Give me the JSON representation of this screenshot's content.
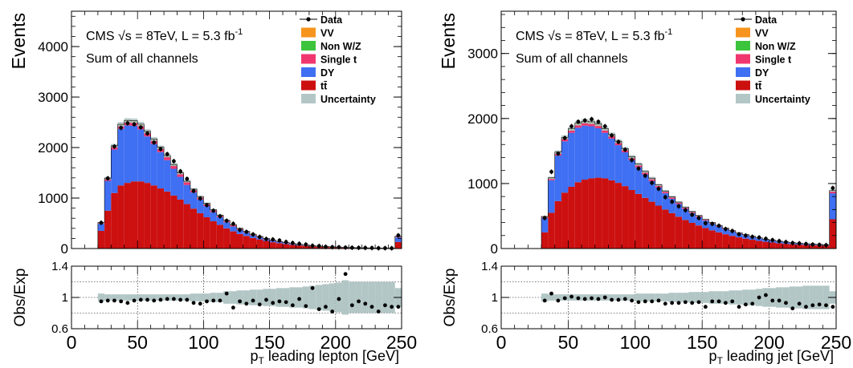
{
  "colors": {
    "vv": "#f7941d",
    "nonwz": "#3cc43c",
    "singlet": "#f0366e",
    "dy": "#3f6ff2",
    "tt": "#cc1010",
    "uncertainty": "#b3c6c6",
    "data": "#000000"
  },
  "legend": [
    {
      "key": "data",
      "label": "Data",
      "style": "marker"
    },
    {
      "key": "vv",
      "label": "VV",
      "style": "box"
    },
    {
      "key": "nonwz",
      "label": "Non W/Z",
      "style": "box"
    },
    {
      "key": "singlet",
      "label": "Single t",
      "style": "box"
    },
    {
      "key": "dy",
      "label": "DY",
      "style": "box"
    },
    {
      "key": "tt",
      "label": "tt̄",
      "style": "box"
    },
    {
      "key": "uncertainty",
      "label": "Uncertainty",
      "style": "box"
    }
  ],
  "chart_data": [
    {
      "type": "bar",
      "stacked": true,
      "annotation1": "CMS √s = 8TeV, L = 5.3 fb",
      "annotation1_sup": "-1",
      "annotation2": "Sum of all channels",
      "ylabel": "Events",
      "xlabel": "p_T leading lepton [GeV]",
      "xlabel_main": "p",
      "xlabel_sub": "T",
      "xlabel_rest": " leading lepton [GeV]",
      "xlim": [
        0,
        250
      ],
      "ylim": [
        0,
        4700
      ],
      "yticks": [
        0,
        1000,
        2000,
        3000,
        4000
      ],
      "xticks": [
        0,
        50,
        100,
        150,
        200,
        250
      ],
      "bin_width": 5,
      "bin_low_edges": [
        20,
        25,
        30,
        35,
        40,
        45,
        50,
        55,
        60,
        65,
        70,
        75,
        80,
        85,
        90,
        95,
        100,
        105,
        110,
        115,
        120,
        125,
        130,
        135,
        140,
        145,
        150,
        155,
        160,
        165,
        170,
        175,
        180,
        185,
        190,
        195,
        200,
        205,
        210,
        215,
        220,
        225,
        230,
        235,
        240,
        245
      ],
      "tt": [
        350,
        750,
        1100,
        1250,
        1300,
        1330,
        1330,
        1300,
        1250,
        1190,
        1130,
        1050,
        970,
        880,
        790,
        700,
        620,
        540,
        470,
        400,
        340,
        290,
        250,
        210,
        180,
        150,
        125,
        105,
        88,
        74,
        62,
        52,
        43,
        36,
        30,
        25,
        21,
        17,
        14,
        12,
        10,
        8,
        7,
        6,
        5,
        130
      ],
      "dy": [
        140,
        590,
        860,
        1120,
        1140,
        1100,
        1030,
        920,
        820,
        720,
        620,
        530,
        450,
        380,
        320,
        270,
        220,
        180,
        150,
        120,
        98,
        80,
        64,
        50,
        40,
        32,
        26,
        21,
        17,
        14,
        11,
        9,
        7,
        6,
        5,
        4,
        3,
        3,
        2,
        2,
        2,
        1,
        1,
        1,
        1,
        90
      ],
      "singlet": [
        15,
        35,
        50,
        60,
        65,
        68,
        70,
        70,
        68,
        65,
        62,
        58,
        54,
        50,
        45,
        41,
        37,
        33,
        29,
        26,
        23,
        20,
        17,
        15,
        13,
        11,
        9,
        8,
        7,
        6,
        5,
        4,
        4,
        3,
        3,
        2,
        2,
        2,
        1,
        1,
        1,
        1,
        1,
        1,
        1,
        15
      ],
      "nonwz": [
        5,
        10,
        14,
        16,
        17,
        18,
        18,
        17,
        17,
        16,
        15,
        14,
        13,
        12,
        11,
        10,
        9,
        8,
        7,
        6,
        5,
        5,
        4,
        4,
        3,
        3,
        3,
        2,
        2,
        2,
        2,
        1,
        1,
        1,
        1,
        1,
        1,
        1,
        1,
        0,
        0,
        0,
        0,
        0,
        0,
        3
      ],
      "vv": [
        5,
        9,
        12,
        14,
        15,
        15,
        15,
        15,
        14,
        14,
        13,
        12,
        11,
        11,
        10,
        9,
        8,
        7,
        7,
        6,
        5,
        5,
        4,
        4,
        3,
        3,
        3,
        2,
        2,
        2,
        2,
        1,
        1,
        1,
        1,
        1,
        1,
        1,
        1,
        1,
        1,
        0,
        0,
        0,
        0,
        5
      ],
      "data": [
        510,
        1390,
        2020,
        2390,
        2480,
        2460,
        2400,
        2280,
        2100,
        1970,
        1870,
        1730,
        1530,
        1380,
        1140,
        990,
        860,
        750,
        640,
        550,
        490,
        370,
        330,
        280,
        230,
        190,
        180,
        160,
        130,
        110,
        95,
        80,
        56,
        50,
        35,
        28,
        26,
        20,
        17,
        15,
        13,
        11,
        8,
        8,
        6,
        260
      ],
      "ratio": {
        "ylabel": "Obs/Exp",
        "ylim": [
          0.6,
          1.4
        ],
        "yticks": [
          0.6,
          1,
          1.4
        ],
        "ytick_labels": [
          "0.6",
          "1",
          "1.4"
        ],
        "gridlines": [
          0.8,
          1.0,
          1.2
        ],
        "values": [
          0.95,
          0.96,
          0.96,
          0.95,
          0.93,
          0.96,
          0.97,
          0.97,
          0.96,
          0.97,
          0.98,
          0.98,
          0.97,
          0.97,
          0.93,
          0.92,
          0.95,
          0.96,
          0.96,
          1.05,
          0.87,
          0.95,
          0.92,
          0.96,
          0.91,
          0.97,
          0.93,
          0.95,
          0.94,
          0.9,
          0.98,
          0.89,
          1.12,
          0.85,
          0.88,
          0.82,
          0.98,
          1.3,
          0.9,
          0.95,
          0.92,
          0.88,
          0.82,
          0.9,
          0.88,
          0.88
        ],
        "uncertainty": [
          0.05,
          0.04,
          0.04,
          0.04,
          0.04,
          0.04,
          0.04,
          0.04,
          0.04,
          0.04,
          0.04,
          0.04,
          0.04,
          0.04,
          0.05,
          0.05,
          0.05,
          0.06,
          0.06,
          0.08,
          0.08,
          0.09,
          0.09,
          0.1,
          0.1,
          0.11,
          0.11,
          0.12,
          0.12,
          0.13,
          0.13,
          0.14,
          0.15,
          0.16,
          0.17,
          0.18,
          0.19,
          0.22,
          0.2,
          0.2,
          0.2,
          0.2,
          0.2,
          0.2,
          0.2,
          0.12
        ]
      }
    },
    {
      "type": "bar",
      "stacked": true,
      "annotation1": "CMS √s = 8TeV, L = 5.3 fb",
      "annotation1_sup": "-1",
      "annotation2": "Sum of all channels",
      "ylabel": "Events",
      "xlabel": "p_T leading jet [GeV]",
      "xlabel_main": "p",
      "xlabel_sub": "T",
      "xlabel_rest": " leading jet [GeV]",
      "xlim": [
        0,
        250
      ],
      "ylim": [
        0,
        3650
      ],
      "yticks": [
        0,
        1000,
        2000,
        3000
      ],
      "xticks": [
        0,
        50,
        100,
        150,
        200,
        250
      ],
      "bin_width": 5,
      "bin_low_edges": [
        30,
        35,
        40,
        45,
        50,
        55,
        60,
        65,
        70,
        75,
        80,
        85,
        90,
        95,
        100,
        105,
        110,
        115,
        120,
        125,
        130,
        135,
        140,
        145,
        150,
        155,
        160,
        165,
        170,
        175,
        180,
        185,
        190,
        195,
        200,
        205,
        210,
        215,
        220,
        225,
        230,
        235,
        240,
        245
      ],
      "tt": [
        250,
        550,
        730,
        860,
        950,
        1020,
        1060,
        1080,
        1090,
        1080,
        1050,
        1010,
        960,
        900,
        840,
        780,
        720,
        660,
        600,
        545,
        490,
        440,
        395,
        355,
        315,
        280,
        250,
        220,
        195,
        172,
        152,
        135,
        118,
        104,
        92,
        82,
        73,
        66,
        60,
        55,
        51,
        48,
        45,
        450
      ],
      "dy": [
        220,
        500,
        700,
        790,
        830,
        840,
        830,
        800,
        760,
        700,
        640,
        580,
        520,
        460,
        410,
        360,
        320,
        280,
        250,
        220,
        195,
        170,
        150,
        130,
        115,
        100,
        88,
        76,
        66,
        58,
        50,
        43,
        37,
        32,
        28,
        24,
        21,
        18,
        16,
        14,
        12,
        10,
        9,
        400
      ],
      "singlet": [
        15,
        25,
        35,
        40,
        42,
        44,
        45,
        45,
        44,
        43,
        41,
        39,
        37,
        35,
        32,
        30,
        28,
        26,
        24,
        22,
        20,
        18,
        16,
        15,
        13,
        12,
        11,
        10,
        9,
        8,
        7,
        6,
        6,
        5,
        5,
        4,
        4,
        3,
        3,
        3,
        3,
        2,
        2,
        25
      ],
      "nonwz": [
        4,
        7,
        10,
        12,
        13,
        13,
        13,
        13,
        13,
        12,
        12,
        11,
        10,
        10,
        9,
        8,
        8,
        7,
        6,
        6,
        5,
        5,
        4,
        4,
        4,
        3,
        3,
        3,
        2,
        2,
        2,
        2,
        2,
        1,
        1,
        1,
        1,
        1,
        1,
        1,
        1,
        1,
        1,
        8
      ],
      "vv": [
        4,
        6,
        8,
        9,
        10,
        10,
        11,
        11,
        11,
        11,
        10,
        10,
        9,
        9,
        8,
        8,
        7,
        6,
        6,
        5,
        5,
        5,
        4,
        4,
        3,
        3,
        3,
        3,
        2,
        2,
        2,
        2,
        2,
        1,
        1,
        1,
        1,
        1,
        1,
        1,
        1,
        1,
        1,
        8
      ],
      "data": [
        470,
        1180,
        1460,
        1700,
        1880,
        1950,
        1970,
        1990,
        1950,
        1880,
        1740,
        1640,
        1520,
        1360,
        1230,
        1120,
        1010,
        920,
        790,
        720,
        650,
        590,
        520,
        470,
        390,
        380,
        350,
        300,
        270,
        220,
        200,
        180,
        170,
        150,
        130,
        115,
        100,
        85,
        80,
        70,
        62,
        57,
        52,
        930
      ],
      "ratio": {
        "ylabel": "Obs/Exp",
        "ylim": [
          0.6,
          1.4
        ],
        "yticks": [
          0.6,
          1,
          1.4
        ],
        "ytick_labels": [
          "0.6",
          "1",
          "1.4"
        ],
        "gridlines": [
          0.8,
          1.0,
          1.2
        ],
        "values": [
          0.96,
          1.05,
          0.96,
          0.99,
          1.01,
          0.99,
          0.98,
          0.99,
          0.98,
          1.0,
          0.97,
          0.97,
          0.98,
          0.96,
          0.94,
          0.95,
          0.95,
          0.96,
          0.92,
          0.93,
          0.93,
          0.94,
          0.93,
          0.94,
          0.88,
          0.95,
          0.95,
          0.93,
          0.95,
          0.88,
          0.91,
          0.92,
          1.0,
          1.03,
          0.96,
          0.96,
          0.93,
          0.86,
          0.92,
          0.88,
          0.9,
          0.91,
          0.9,
          0.88
        ],
        "uncertainty": [
          0.05,
          0.04,
          0.04,
          0.04,
          0.04,
          0.04,
          0.04,
          0.04,
          0.04,
          0.04,
          0.04,
          0.04,
          0.04,
          0.04,
          0.05,
          0.05,
          0.05,
          0.05,
          0.05,
          0.06,
          0.06,
          0.06,
          0.07,
          0.07,
          0.07,
          0.08,
          0.08,
          0.08,
          0.09,
          0.09,
          0.1,
          0.1,
          0.11,
          0.12,
          0.12,
          0.13,
          0.13,
          0.14,
          0.14,
          0.15,
          0.15,
          0.15,
          0.15,
          0.08
        ]
      }
    }
  ]
}
